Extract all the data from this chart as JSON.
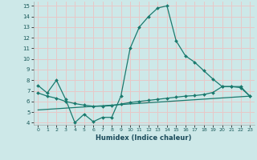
{
  "xlabel": "Humidex (Indice chaleur)",
  "bg_color": "#cde8e8",
  "grid_color": "#e8c8c8",
  "line_color": "#1a7a6e",
  "xlim": [
    -0.5,
    23.5
  ],
  "ylim": [
    3.8,
    15.4
  ],
  "yticks": [
    4,
    5,
    6,
    7,
    8,
    9,
    10,
    11,
    12,
    13,
    14,
    15
  ],
  "xticks": [
    0,
    1,
    2,
    3,
    4,
    5,
    6,
    7,
    8,
    9,
    10,
    11,
    12,
    13,
    14,
    15,
    16,
    17,
    18,
    19,
    20,
    21,
    22,
    23
  ],
  "series1_x": [
    0,
    1,
    2,
    3,
    4,
    5,
    6,
    7,
    8,
    9,
    10,
    11,
    12,
    13,
    14,
    15,
    16,
    17,
    18,
    19,
    20,
    21,
    22,
    23
  ],
  "series1_y": [
    7.5,
    6.8,
    8.0,
    6.2,
    4.0,
    4.8,
    4.1,
    4.5,
    4.5,
    6.5,
    11.0,
    13.0,
    14.0,
    14.8,
    15.0,
    11.7,
    10.3,
    9.7,
    8.9,
    8.1,
    7.4,
    7.4,
    7.3,
    6.5
  ],
  "series2_x": [
    0,
    1,
    2,
    3,
    4,
    5,
    6,
    7,
    8,
    9,
    10,
    11,
    12,
    13,
    14,
    15,
    16,
    17,
    18,
    19,
    20,
    21,
    22,
    23
  ],
  "series2_y": [
    6.8,
    6.5,
    6.3,
    6.0,
    5.8,
    5.65,
    5.55,
    5.55,
    5.6,
    5.75,
    5.9,
    6.0,
    6.1,
    6.2,
    6.3,
    6.4,
    6.5,
    6.55,
    6.65,
    6.85,
    7.4,
    7.4,
    7.4,
    6.5
  ],
  "series3_x": [
    0,
    23
  ],
  "series3_y": [
    5.2,
    6.5
  ]
}
